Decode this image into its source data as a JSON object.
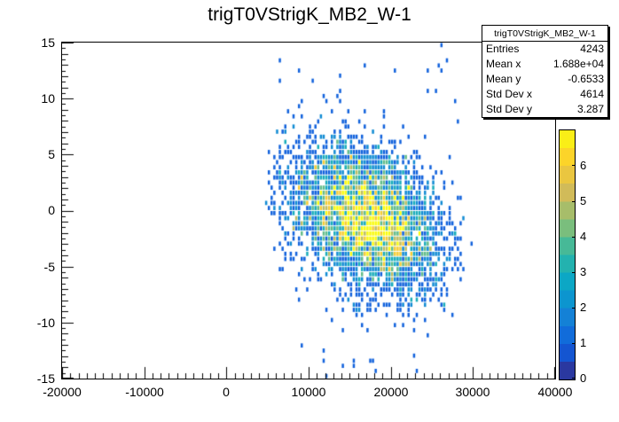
{
  "title": "trigT0VStrigK_MB2_W-1",
  "stats_box": {
    "title": "trigT0VStrigK_MB2_W-1",
    "rows": [
      {
        "label": "Entries",
        "value": "4243"
      },
      {
        "label": "Mean x",
        "value": "1.688e+04"
      },
      {
        "label": "Mean y",
        "value": "-0.6533"
      },
      {
        "label": "Std Dev x",
        "value": "4614"
      },
      {
        "label": "Std Dev y",
        "value": "3.287"
      }
    ]
  },
  "chart_data": {
    "type": "heatmap",
    "title": "trigT0VStrigK_MB2_W-1",
    "xlim": [
      -20000,
      40000
    ],
    "ylim": [
      -15,
      15
    ],
    "zlim": [
      0,
      7
    ],
    "x_ticks": [
      -20000,
      -10000,
      0,
      10000,
      20000,
      30000,
      40000
    ],
    "y_ticks": [
      15,
      10,
      5,
      0,
      -5,
      -10,
      -15
    ],
    "z_ticks": [
      6,
      5,
      4,
      3,
      2,
      1,
      0
    ],
    "x_tick_labels": [
      "-20000",
      "-10000",
      "0",
      "10000",
      "20000",
      "30000",
      "40000"
    ],
    "y_tick_labels": [
      "15",
      "10",
      "5",
      "0",
      "-5",
      "-10",
      "-15"
    ],
    "z_tick_labels": [
      "6",
      "5",
      "4",
      "3",
      "2",
      "1",
      "0"
    ],
    "grid": false,
    "legend_position": "palette-right",
    "stats": {
      "entries": 4243,
      "mean_x": 16880,
      "mean_y": -0.6533,
      "std_dev_x": 4614,
      "std_dev_y": 3.287
    },
    "distribution": {
      "entries": 4243,
      "mean_x": 16880,
      "std_x": 4614,
      "trunc_sigma_x": 2.6,
      "mean_y": -0.6533,
      "std_y": 3.287,
      "rho": -0.35,
      "bg_fraction": 0.02,
      "bg_x_range": [
        6000,
        30000
      ],
      "bins_x": 180,
      "bins_y": 66,
      "seed": 20
    },
    "palette": [
      "#352a87",
      "#0f5cdd",
      "#1481d6",
      "#06a4ca",
      "#2eb7a4",
      "#87bf77",
      "#d1bb59",
      "#fcce2e",
      "#f9fb0e"
    ]
  }
}
